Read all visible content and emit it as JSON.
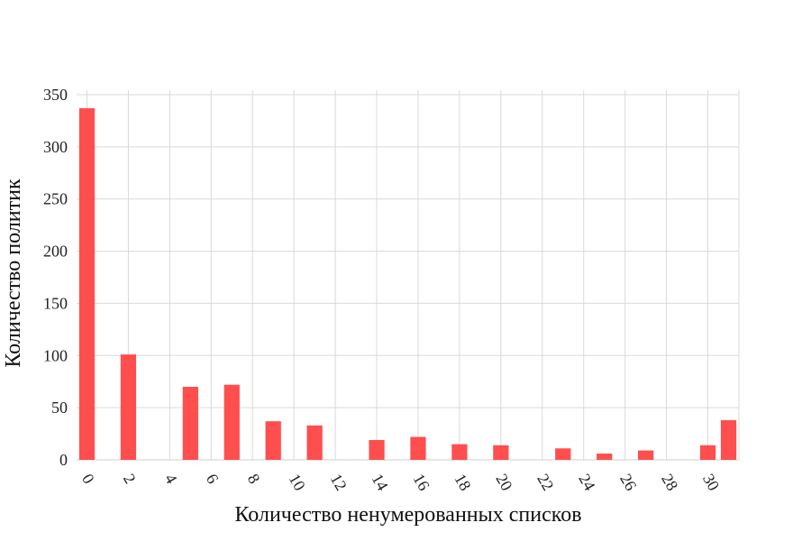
{
  "chart_data": {
    "type": "bar",
    "title": "",
    "xlabel": "Количество ненумерованных списков",
    "ylabel": "Количество политик",
    "x_ticks": [
      "0",
      "2",
      "4",
      "6",
      "8",
      "10",
      "12",
      "14",
      "16",
      "18",
      "20",
      "22",
      "24",
      "26",
      "28",
      "30"
    ],
    "y_ticks": [
      "0",
      "50",
      "100",
      "150",
      "200",
      "250",
      "300",
      "350"
    ],
    "xlim": [
      -0.5,
      31.5
    ],
    "ylim": [
      0,
      350
    ],
    "grid": true,
    "bar_color": "#ff4444",
    "bars": [
      {
        "x": 0,
        "value": 337
      },
      {
        "x": 2,
        "value": 101
      },
      {
        "x": 5,
        "value": 70
      },
      {
        "x": 7,
        "value": 72
      },
      {
        "x": 9,
        "value": 37
      },
      {
        "x": 11,
        "value": 33
      },
      {
        "x": 14,
        "value": 19
      },
      {
        "x": 16,
        "value": 22
      },
      {
        "x": 18,
        "value": 15
      },
      {
        "x": 20,
        "value": 14
      },
      {
        "x": 23,
        "value": 11
      },
      {
        "x": 25,
        "value": 6
      },
      {
        "x": 27,
        "value": 9
      },
      {
        "x": 30,
        "value": 14
      },
      {
        "x": 31,
        "value": 38
      }
    ]
  }
}
